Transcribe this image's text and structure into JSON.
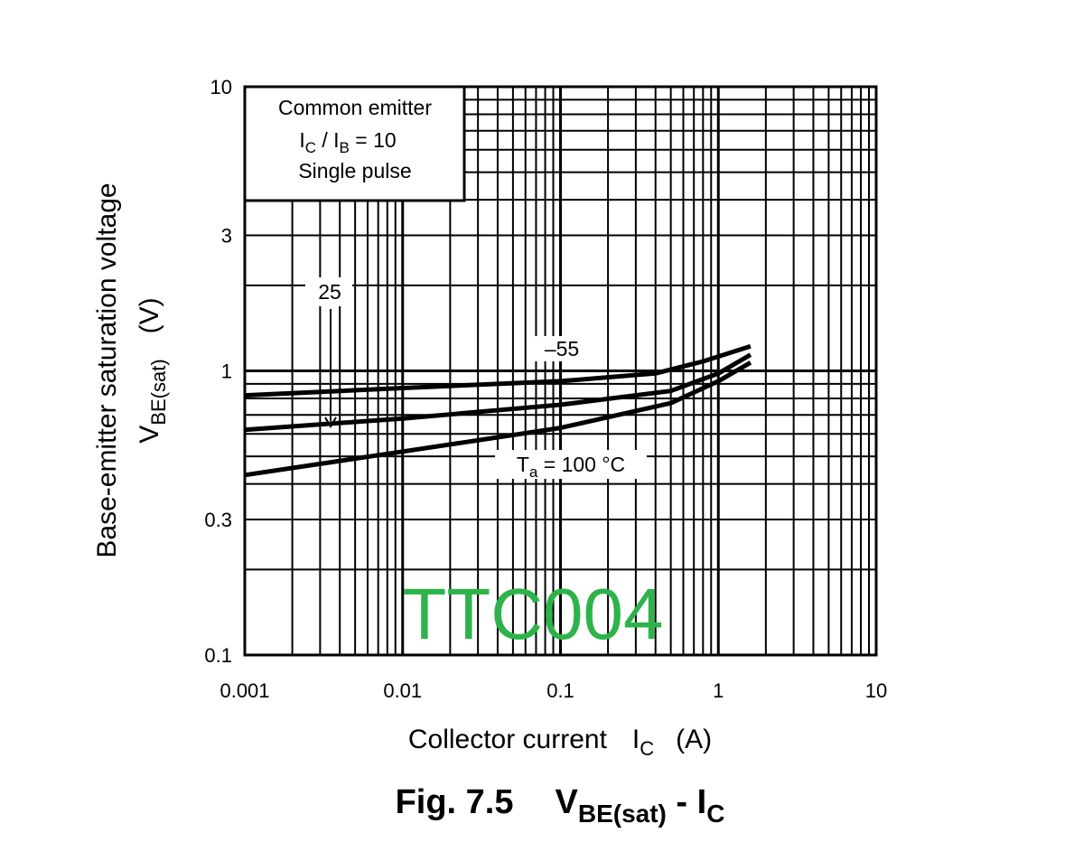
{
  "chart_data": {
    "type": "line",
    "x_scale": "log",
    "y_scale": "log",
    "xlim": [
      0.001,
      10
    ],
    "ylim": [
      0.1,
      10
    ],
    "x_ticks": [
      {
        "value": 0.001,
        "label": "0.001"
      },
      {
        "value": 0.01,
        "label": "0.01"
      },
      {
        "value": 0.1,
        "label": "0.1"
      },
      {
        "value": 1,
        "label": "1"
      },
      {
        "value": 10,
        "label": "10"
      }
    ],
    "y_ticks": [
      {
        "value": 0.1,
        "label": "0.1"
      },
      {
        "value": 0.3,
        "label": "0.3"
      },
      {
        "value": 1,
        "label": "1"
      },
      {
        "value": 3,
        "label": "3"
      },
      {
        "value": 10,
        "label": "10"
      }
    ],
    "grid": true,
    "xlabel": {
      "main": "Collector current",
      "sym": "I",
      "sub": "C",
      "unit": "(A)"
    },
    "ylabel": {
      "main": "Base-emitter saturation voltage",
      "sym": "V",
      "sub": "BE(sat)",
      "unit": "(V)"
    },
    "caption": {
      "fig": "Fig. 7.5",
      "sym1": "V",
      "sub1": "BE(sat)",
      "dash": " - ",
      "sym2": "I",
      "sub2": "C"
    },
    "conditions": {
      "line1": "Common emitter",
      "line2": {
        "s1": "I",
        "sub1": "C",
        "mid": " / ",
        "s2": "I",
        "sub2": "B",
        "end": " = 10"
      },
      "line3": "Single pulse"
    },
    "series": [
      {
        "name": "–55",
        "points": [
          [
            0.001,
            0.82
          ],
          [
            0.01,
            0.87
          ],
          [
            0.1,
            0.92
          ],
          [
            0.4,
            0.98
          ],
          [
            0.8,
            1.08
          ],
          [
            1.6,
            1.22
          ]
        ]
      },
      {
        "name": "25",
        "points": [
          [
            0.001,
            0.62
          ],
          [
            0.01,
            0.68
          ],
          [
            0.1,
            0.76
          ],
          [
            0.5,
            0.85
          ],
          [
            1.0,
            0.98
          ],
          [
            1.6,
            1.14
          ]
        ]
      },
      {
        "name": "100 °C",
        "points": [
          [
            0.001,
            0.43
          ],
          [
            0.01,
            0.52
          ],
          [
            0.1,
            0.63
          ],
          [
            0.5,
            0.77
          ],
          [
            1.0,
            0.92
          ],
          [
            1.6,
            1.07
          ]
        ]
      }
    ],
    "series_labels": [
      {
        "text": "–55"
      },
      {
        "text": "25"
      },
      {
        "s": "T",
        "sub": "a",
        "rest": " = 100 °C"
      }
    ],
    "watermark": "TTC004"
  }
}
